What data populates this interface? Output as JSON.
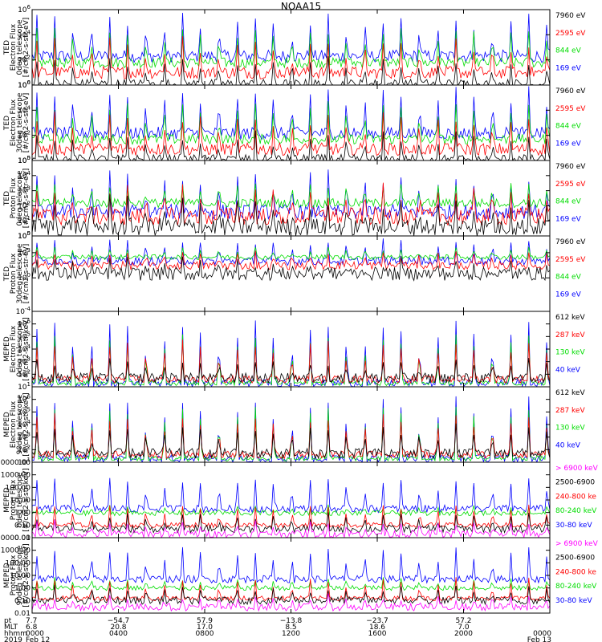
{
  "title": "NOAA15",
  "colors": {
    "blue": "#0000ff",
    "red": "#ff0000",
    "green": "#00dd00",
    "black": "#000000",
    "magenta": "#ff00ff"
  },
  "chart_data": [
    {
      "type": "line",
      "ylabel": [
        "TED",
        "Electron Flux",
        "0deg telescope",
        "[#/cm2-s-str-eV]"
      ],
      "y_scale": "log",
      "ylim": [
        1,
        1000000
      ],
      "y_ticks": [
        {
          "value": 1,
          "label": "10^0"
        },
        {
          "value": 100,
          "label": "10^2"
        },
        {
          "value": 10000,
          "label": "10^4"
        },
        {
          "value": 1000000,
          "label": "10^6"
        }
      ],
      "legend": [
        {
          "text": "7960 eV",
          "color": "#000000"
        },
        {
          "text": "2595 eV",
          "color": "#ff0000"
        },
        {
          "text": "844 eV",
          "color": "#00dd00"
        },
        {
          "text": "169 eV",
          "color": "#0000ff"
        }
      ],
      "series": [
        {
          "name": "7960 eV",
          "color": "#000000",
          "base": 1.2,
          "peak": 100,
          "noise": 0.4
        },
        {
          "name": "2595 eV",
          "color": "#ff0000",
          "base": 10,
          "peak": 3000,
          "noise": 0.5
        },
        {
          "name": "844 eV",
          "color": "#00dd00",
          "base": 60,
          "peak": 30000,
          "noise": 0.4
        },
        {
          "name": "169 eV",
          "color": "#0000ff",
          "base": 200,
          "peak": 300000,
          "noise": 0.5
        }
      ]
    },
    {
      "type": "line",
      "ylabel": [
        "TED",
        "Electron Flux",
        "30deg telescope",
        "[#/cm2-s-str-eV]"
      ],
      "y_scale": "log",
      "ylim": [
        1,
        1000000
      ],
      "y_ticks": [
        {
          "value": 1,
          "label": "10^0"
        },
        {
          "value": 100,
          "label": "10^2"
        },
        {
          "value": 10000,
          "label": "10^4"
        },
        {
          "value": 1000000,
          "label": "10^6"
        }
      ],
      "legend": [
        {
          "text": "7960 eV",
          "color": "#000000"
        },
        {
          "text": "2595 eV",
          "color": "#ff0000"
        },
        {
          "text": "844 eV",
          "color": "#00dd00"
        },
        {
          "text": "169 eV",
          "color": "#0000ff"
        }
      ],
      "series": [
        {
          "name": "7960 eV",
          "color": "#000000",
          "base": 1.2,
          "peak": 100,
          "noise": 0.4
        },
        {
          "name": "2595 eV",
          "color": "#ff0000",
          "base": 8,
          "peak": 3000,
          "noise": 0.5
        },
        {
          "name": "844 eV",
          "color": "#00dd00",
          "base": 50,
          "peak": 30000,
          "noise": 0.4
        },
        {
          "name": "169 eV",
          "color": "#0000ff",
          "base": 150,
          "peak": 300000,
          "noise": 0.5
        }
      ]
    },
    {
      "type": "line",
      "ylabel": [
        "TED",
        "Proton Flux",
        "0deg telescope",
        "[#/cm2-s-str-eV]"
      ],
      "y_scale": "log",
      "ylim": [
        1,
        100000
      ],
      "y_ticks": [
        {
          "value": 1,
          "label": "10^0"
        },
        {
          "value": 10,
          "label": "10^1"
        },
        {
          "value": 100,
          "label": "10^2"
        },
        {
          "value": 1000,
          "label": "10^3"
        },
        {
          "value": 10000,
          "label": "10^4"
        },
        {
          "value": 100000,
          "label": "10^5"
        }
      ],
      "legend": [
        {
          "text": "7960 eV",
          "color": "#000000"
        },
        {
          "text": "2595 eV",
          "color": "#ff0000"
        },
        {
          "text": "844 eV",
          "color": "#00dd00"
        },
        {
          "text": "169 eV",
          "color": "#0000ff"
        }
      ],
      "series": [
        {
          "name": "7960 eV",
          "color": "#000000",
          "base": 4,
          "peak": 200,
          "noise": 0.6
        },
        {
          "name": "2595 eV",
          "color": "#ff0000",
          "base": 20,
          "peak": 1000,
          "noise": 0.6
        },
        {
          "name": "844 eV",
          "color": "#00dd00",
          "base": 150,
          "peak": 3000,
          "noise": 0.3
        },
        {
          "name": "169 eV",
          "color": "#0000ff",
          "base": 40,
          "peak": 10000,
          "noise": 0.5
        }
      ]
    },
    {
      "type": "line",
      "ylabel": [
        "TED",
        "Proton Flux",
        "30deg telescope",
        "[#/cm2-s-str-eV]"
      ],
      "y_scale": "log",
      "ylim": [
        0.0001,
        100000
      ],
      "y_ticks": [
        {
          "value": 0.0001,
          "label": "10^-4"
        },
        {
          "value": 1,
          "label": "10^0"
        },
        {
          "value": 1000,
          "label": "10^3"
        },
        {
          "value": 100000,
          "label": "10^5"
        }
      ],
      "legend": [
        {
          "text": "7960 eV",
          "color": "#000000"
        },
        {
          "text": "2595 eV",
          "color": "#ff0000"
        },
        {
          "text": "844 eV",
          "color": "#00dd00"
        },
        {
          "text": "169 eV",
          "color": "#0000ff"
        }
      ],
      "series": [
        {
          "name": "7960 eV",
          "color": "#000000",
          "base": 3,
          "peak": 100,
          "noise": 0.8
        },
        {
          "name": "2595 eV",
          "color": "#ff0000",
          "base": 30,
          "peak": 1000,
          "noise": 0.5
        },
        {
          "name": "844 eV",
          "color": "#00dd00",
          "base": 300,
          "peak": 3000,
          "noise": 0.3
        },
        {
          "name": "169 eV",
          "color": "#0000ff",
          "base": 100,
          "peak": 30000,
          "noise": 0.5
        }
      ]
    },
    {
      "type": "line",
      "ylabel": [
        "MEPED",
        "Electron Flux",
        "0deg telescope",
        "[#/cm2-s-str-keV]"
      ],
      "y_scale": "log",
      "ylim": [
        10,
        10000000
      ],
      "y_ticks": [
        {
          "value": 10,
          "label": "10^1"
        },
        {
          "value": 100,
          "label": "10^2"
        },
        {
          "value": 1000,
          "label": "10^3"
        },
        {
          "value": 10000,
          "label": "10^4"
        },
        {
          "value": 100000,
          "label": "10^5"
        },
        {
          "value": 1000000,
          "label": "10^6"
        }
      ],
      "legend": [
        {
          "text": "612 keV",
          "color": "#000000"
        },
        {
          "text": "287 keV",
          "color": "#ff0000"
        },
        {
          "text": "130 keV",
          "color": "#00dd00"
        },
        {
          "text": "40 keV",
          "color": "#0000ff"
        }
      ],
      "series": [
        {
          "name": "612 keV",
          "color": "#000000",
          "base": 50,
          "peak": 1000,
          "noise": 0.4
        },
        {
          "name": "287 keV",
          "color": "#ff0000",
          "base": 40,
          "peak": 30000,
          "noise": 0.3
        },
        {
          "name": "130 keV",
          "color": "#00dd00",
          "base": 20,
          "peak": 100000,
          "noise": 0.2
        },
        {
          "name": "40 keV",
          "color": "#0000ff",
          "base": 20,
          "peak": 1000000,
          "noise": 0.3
        }
      ]
    },
    {
      "type": "line",
      "ylabel": [
        "MEPED",
        "Electron Flux",
        "90deg telescope",
        "[#/cm2-s-str-keV]"
      ],
      "y_scale": "log",
      "ylim": [
        10,
        10000000
      ],
      "y_ticks": [
        {
          "value": 10,
          "label": "10^1"
        },
        {
          "value": 100,
          "label": "10^2"
        },
        {
          "value": 1000,
          "label": "10^3"
        },
        {
          "value": 10000,
          "label": "10^4"
        },
        {
          "value": 100000,
          "label": "10^5"
        },
        {
          "value": 1000000,
          "label": "10^6"
        }
      ],
      "legend": [
        {
          "text": "612 keV",
          "color": "#000000"
        },
        {
          "text": "287 keV",
          "color": "#ff0000"
        },
        {
          "text": "130 keV",
          "color": "#00dd00"
        },
        {
          "text": "40 keV",
          "color": "#0000ff"
        }
      ],
      "series": [
        {
          "name": "612 keV",
          "color": "#000000",
          "base": 50,
          "peak": 5000,
          "noise": 0.4
        },
        {
          "name": "287 keV",
          "color": "#ff0000",
          "base": 40,
          "peak": 50000,
          "noise": 0.3
        },
        {
          "name": "130 keV",
          "color": "#00dd00",
          "base": 20,
          "peak": 200000,
          "noise": 0.2
        },
        {
          "name": "40 keV",
          "color": "#0000ff",
          "base": 20,
          "peak": 1000000,
          "noise": 0.3
        }
      ]
    },
    {
      "type": "line",
      "ylabel": [
        "MEPED",
        "Proton Flux",
        "0deg telescope",
        "[#/cm2-s-str-keV]"
      ],
      "y_scale": "log",
      "ylim": [
        0.01,
        10000
      ],
      "y_ticks": [
        {
          "value": 0.01,
          "label": "0.01"
        },
        {
          "value": 0.1,
          "label": "0.10"
        },
        {
          "value": 1,
          "label": "1.00"
        },
        {
          "value": 10,
          "label": "10.00"
        },
        {
          "value": 100,
          "label": "100.00"
        },
        {
          "value": 1000,
          "label": "1000.00"
        },
        {
          "value": 10000,
          "label": "10000.00"
        }
      ],
      "legend": [
        {
          "text": "> 6900 keV",
          "color": "#ff00ff"
        },
        {
          "text": "2500-6900",
          "color": "#000000"
        },
        {
          "text": "240-800 ke",
          "color": "#ff0000"
        },
        {
          "text": "80-240 keV",
          "color": "#00dd00"
        },
        {
          "text": "30-80 keV",
          "color": "#0000ff"
        }
      ],
      "series": [
        {
          "name": "> 6900 keV",
          "color": "#ff00ff",
          "base": 0.02,
          "peak": 0.15,
          "noise": 0.3
        },
        {
          "name": "2500-6900",
          "color": "#000000",
          "base": 0.05,
          "peak": 0.6,
          "noise": 0.3
        },
        {
          "name": "240-800 ke",
          "color": "#ff0000",
          "base": 0.1,
          "peak": 3,
          "noise": 0.2
        },
        {
          "name": "80-240 keV",
          "color": "#00dd00",
          "base": 0.9,
          "peak": 3,
          "noise": 0.2
        },
        {
          "name": "30-80 keV",
          "color": "#0000ff",
          "base": 2,
          "peak": 500,
          "noise": 0.3
        }
      ]
    },
    {
      "type": "line",
      "ylabel": [
        "MEPED",
        "Proton Flux",
        "90deg telescope",
        "[#/cm2-s-str-keV]"
      ],
      "y_scale": "log",
      "ylim": [
        0.01,
        10000
      ],
      "y_ticks": [
        {
          "value": 0.01,
          "label": "0.01"
        },
        {
          "value": 0.1,
          "label": "0.10"
        },
        {
          "value": 1,
          "label": "1.00"
        },
        {
          "value": 10,
          "label": "10.00"
        },
        {
          "value": 100,
          "label": "100.00"
        },
        {
          "value": 1000,
          "label": "1000.00"
        },
        {
          "value": 10000,
          "label": "10000.00"
        }
      ],
      "legend": [
        {
          "text": "> 6900 keV",
          "color": "#ff00ff"
        },
        {
          "text": "2500-6900",
          "color": "#000000"
        },
        {
          "text": "240-800 ke",
          "color": "#ff0000"
        },
        {
          "text": "80-240 keV",
          "color": "#00dd00"
        },
        {
          "text": "30-80 keV",
          "color": "#0000ff"
        }
      ],
      "series": [
        {
          "name": "> 6900 keV",
          "color": "#ff00ff",
          "base": 0.03,
          "peak": 0.2,
          "noise": 0.3
        },
        {
          "name": "2500-6900",
          "color": "#000000",
          "base": 0.1,
          "peak": 1,
          "noise": 0.3
        },
        {
          "name": "240-800 ke",
          "color": "#ff0000",
          "base": 0.15,
          "peak": 5,
          "noise": 0.2
        },
        {
          "name": "80-240 keV",
          "color": "#00dd00",
          "base": 1,
          "peak": 5,
          "noise": 0.2
        },
        {
          "name": "30-80 keV",
          "color": "#0000ff",
          "base": 5,
          "peak": 1000,
          "noise": 0.3
        }
      ]
    }
  ],
  "x_axis": {
    "row_labels": [
      "pt",
      "MLT",
      "hhmm",
      "2019"
    ],
    "columns": [
      {
        "hour": 0,
        "pt": "7.7",
        "mlt": "6.8",
        "hhmm": "0000",
        "date": "Feb 12"
      },
      {
        "hour": 4,
        "pt": "−54.7",
        "mlt": "20.8",
        "hhmm": "0400",
        "date": ""
      },
      {
        "hour": 8,
        "pt": "57.9",
        "mlt": "17.0",
        "hhmm": "0800",
        "date": ""
      },
      {
        "hour": 12,
        "pt": "−13.8",
        "mlt": "8.5",
        "hhmm": "1200",
        "date": ""
      },
      {
        "hour": 16,
        "pt": "−23.7",
        "mlt": "18.6",
        "hhmm": "1600",
        "date": ""
      },
      {
        "hour": 20,
        "pt": "57.2",
        "mlt": "7.0",
        "hhmm": "2000",
        "date": ""
      },
      {
        "hour": 24,
        "pt": "",
        "mlt": "",
        "hhmm": "0000",
        "date": "Feb 13"
      }
    ],
    "xlim": [
      0,
      24
    ]
  }
}
